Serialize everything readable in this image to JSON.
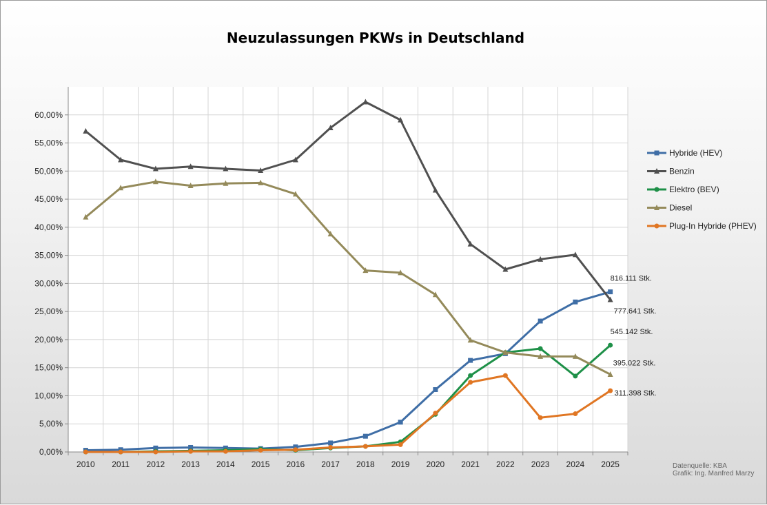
{
  "chart_data": {
    "type": "line",
    "title": "Neuzulassungen PKWs in Deutschland",
    "xlabel": "",
    "ylabel": "",
    "categories": [
      "2010",
      "2011",
      "2012",
      "2013",
      "2014",
      "2015",
      "2016",
      "2017",
      "2018",
      "2019",
      "2020",
      "2021",
      "2022",
      "2023",
      "2024",
      "2025"
    ],
    "ylim": [
      0,
      65
    ],
    "yticks": [
      0,
      5,
      10,
      15,
      20,
      25,
      30,
      35,
      40,
      45,
      50,
      55,
      60
    ],
    "ytick_labels": [
      "0,00%",
      "5,00%",
      "10,00%",
      "15,00%",
      "20,00%",
      "25,00%",
      "30,00%",
      "35,00%",
      "40,00%",
      "45,00%",
      "50,00%",
      "55,00%",
      "60,00%"
    ],
    "grid": true,
    "legend_position": "right",
    "series": [
      {
        "name": "Hybride (HEV)",
        "color": "#3f6ea6",
        "marker": "square",
        "values": [
          0.3,
          0.4,
          0.7,
          0.8,
          0.7,
          0.6,
          0.9,
          1.6,
          2.8,
          5.3,
          11.1,
          16.3,
          17.5,
          23.3,
          26.7,
          28.5
        ],
        "end_label": "816.111 Stk."
      },
      {
        "name": "Benzin",
        "color": "#505050",
        "marker": "triangle",
        "values": [
          57.1,
          52.0,
          50.4,
          50.8,
          50.4,
          50.1,
          52.0,
          57.7,
          62.3,
          59.1,
          46.6,
          37.0,
          32.5,
          34.3,
          35.1,
          27.1
        ],
        "end_label": "777.641 Stk."
      },
      {
        "name": "Elektro (BEV)",
        "color": "#1e9048",
        "marker": "circle",
        "values": [
          0.0,
          0.0,
          0.1,
          0.2,
          0.3,
          0.5,
          0.3,
          0.7,
          1.0,
          1.8,
          6.7,
          13.6,
          17.7,
          18.4,
          13.5,
          19.0
        ],
        "end_label": "545.142 Stk."
      },
      {
        "name": "Diesel",
        "color": "#948a5a",
        "marker": "triangle",
        "values": [
          41.8,
          47.0,
          48.1,
          47.4,
          47.8,
          47.9,
          45.9,
          38.8,
          32.3,
          31.9,
          28.0,
          19.9,
          17.7,
          17.0,
          17.0,
          13.8
        ],
        "end_label": "395.022 Stk."
      },
      {
        "name": "Plug-In Hybride (PHEV)",
        "color": "#e07623",
        "marker": "circle",
        "values": [
          0.0,
          0.0,
          0.0,
          0.1,
          0.1,
          0.3,
          0.4,
          0.8,
          1.0,
          1.3,
          6.9,
          12.4,
          13.6,
          6.1,
          6.8,
          10.9
        ],
        "end_label": "311.398 Stk."
      }
    ]
  },
  "footer": {
    "source": "Datenquelle: KBA",
    "author": "Grafik: Ing. Manfred Marzy"
  }
}
